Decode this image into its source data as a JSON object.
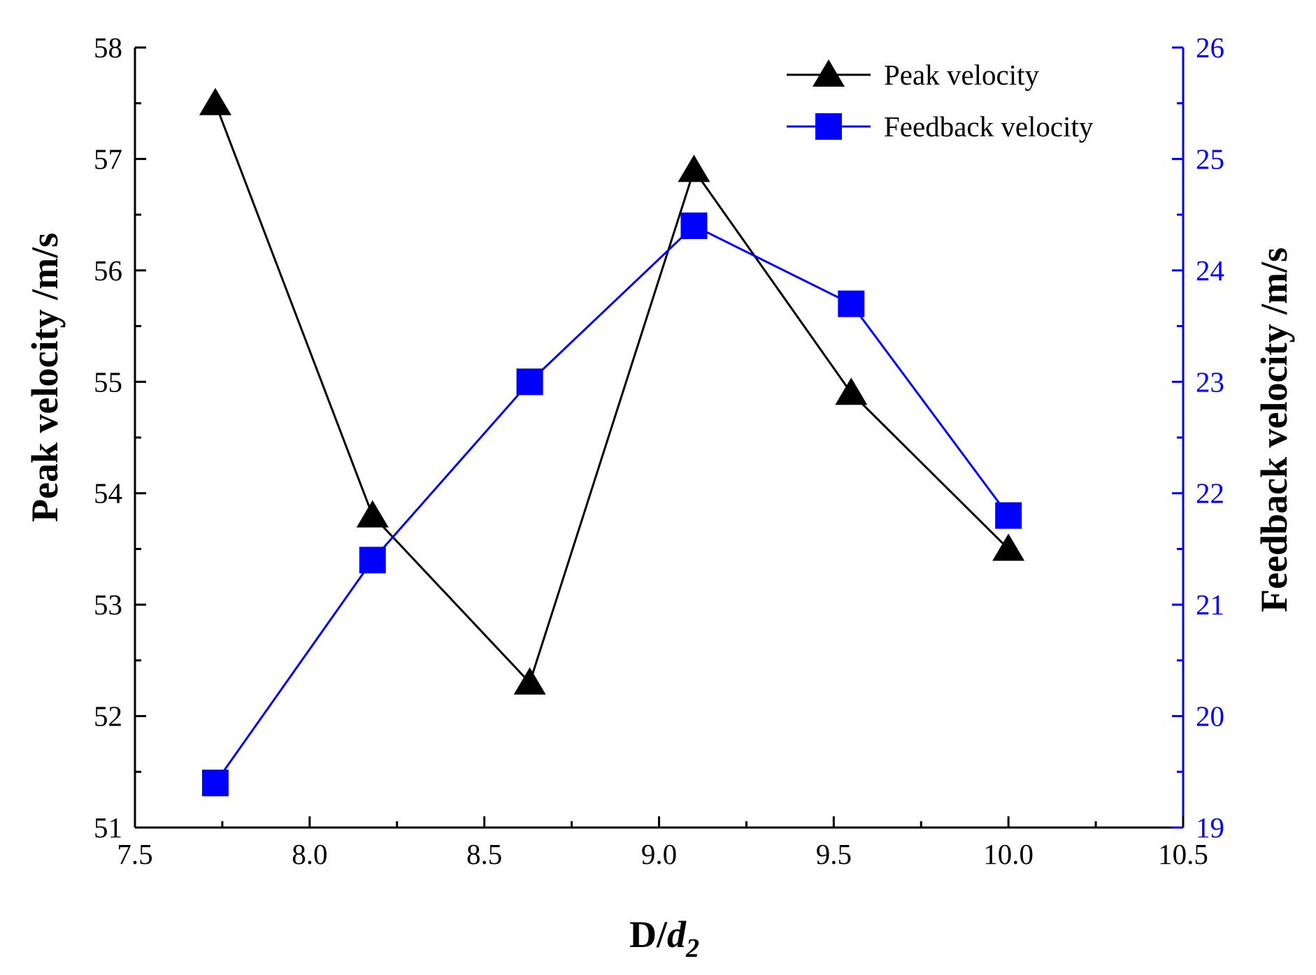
{
  "chart_data": {
    "type": "line",
    "title": "",
    "xlabel_main": "D/",
    "xlabel_var": "d",
    "xlabel_sub": "2",
    "ylabel_left": "Peak velocity /m/s",
    "ylabel_right": "Feedback velocity /m/s",
    "xlim": [
      7.5,
      10.5
    ],
    "ylim_left": [
      51,
      58
    ],
    "ylim_right": [
      19,
      26
    ],
    "x_ticks": [
      "7.5",
      "8.0",
      "8.5",
      "9.0",
      "9.5",
      "10.0",
      "10.5"
    ],
    "y_ticks_left": [
      "51",
      "52",
      "53",
      "54",
      "55",
      "56",
      "57",
      "58"
    ],
    "y_ticks_right": [
      "19",
      "20",
      "21",
      "22",
      "23",
      "24",
      "25",
      "26"
    ],
    "series": [
      {
        "name": "Peak velocity",
        "axis": "left",
        "color": "#000000",
        "marker": "triangle",
        "x": [
          7.73,
          8.18,
          8.63,
          9.1,
          9.55,
          10.0
        ],
        "values": [
          57.5,
          53.8,
          52.3,
          56.9,
          54.9,
          53.5
        ]
      },
      {
        "name": "Feedback velocity",
        "axis": "right",
        "color": "#0000ff",
        "marker": "square",
        "x": [
          7.73,
          8.18,
          8.63,
          9.1,
          9.55,
          10.0
        ],
        "values": [
          19.4,
          21.4,
          23.0,
          24.4,
          23.7,
          21.8
        ]
      }
    ],
    "legend_position": "top-right",
    "grid": false
  }
}
